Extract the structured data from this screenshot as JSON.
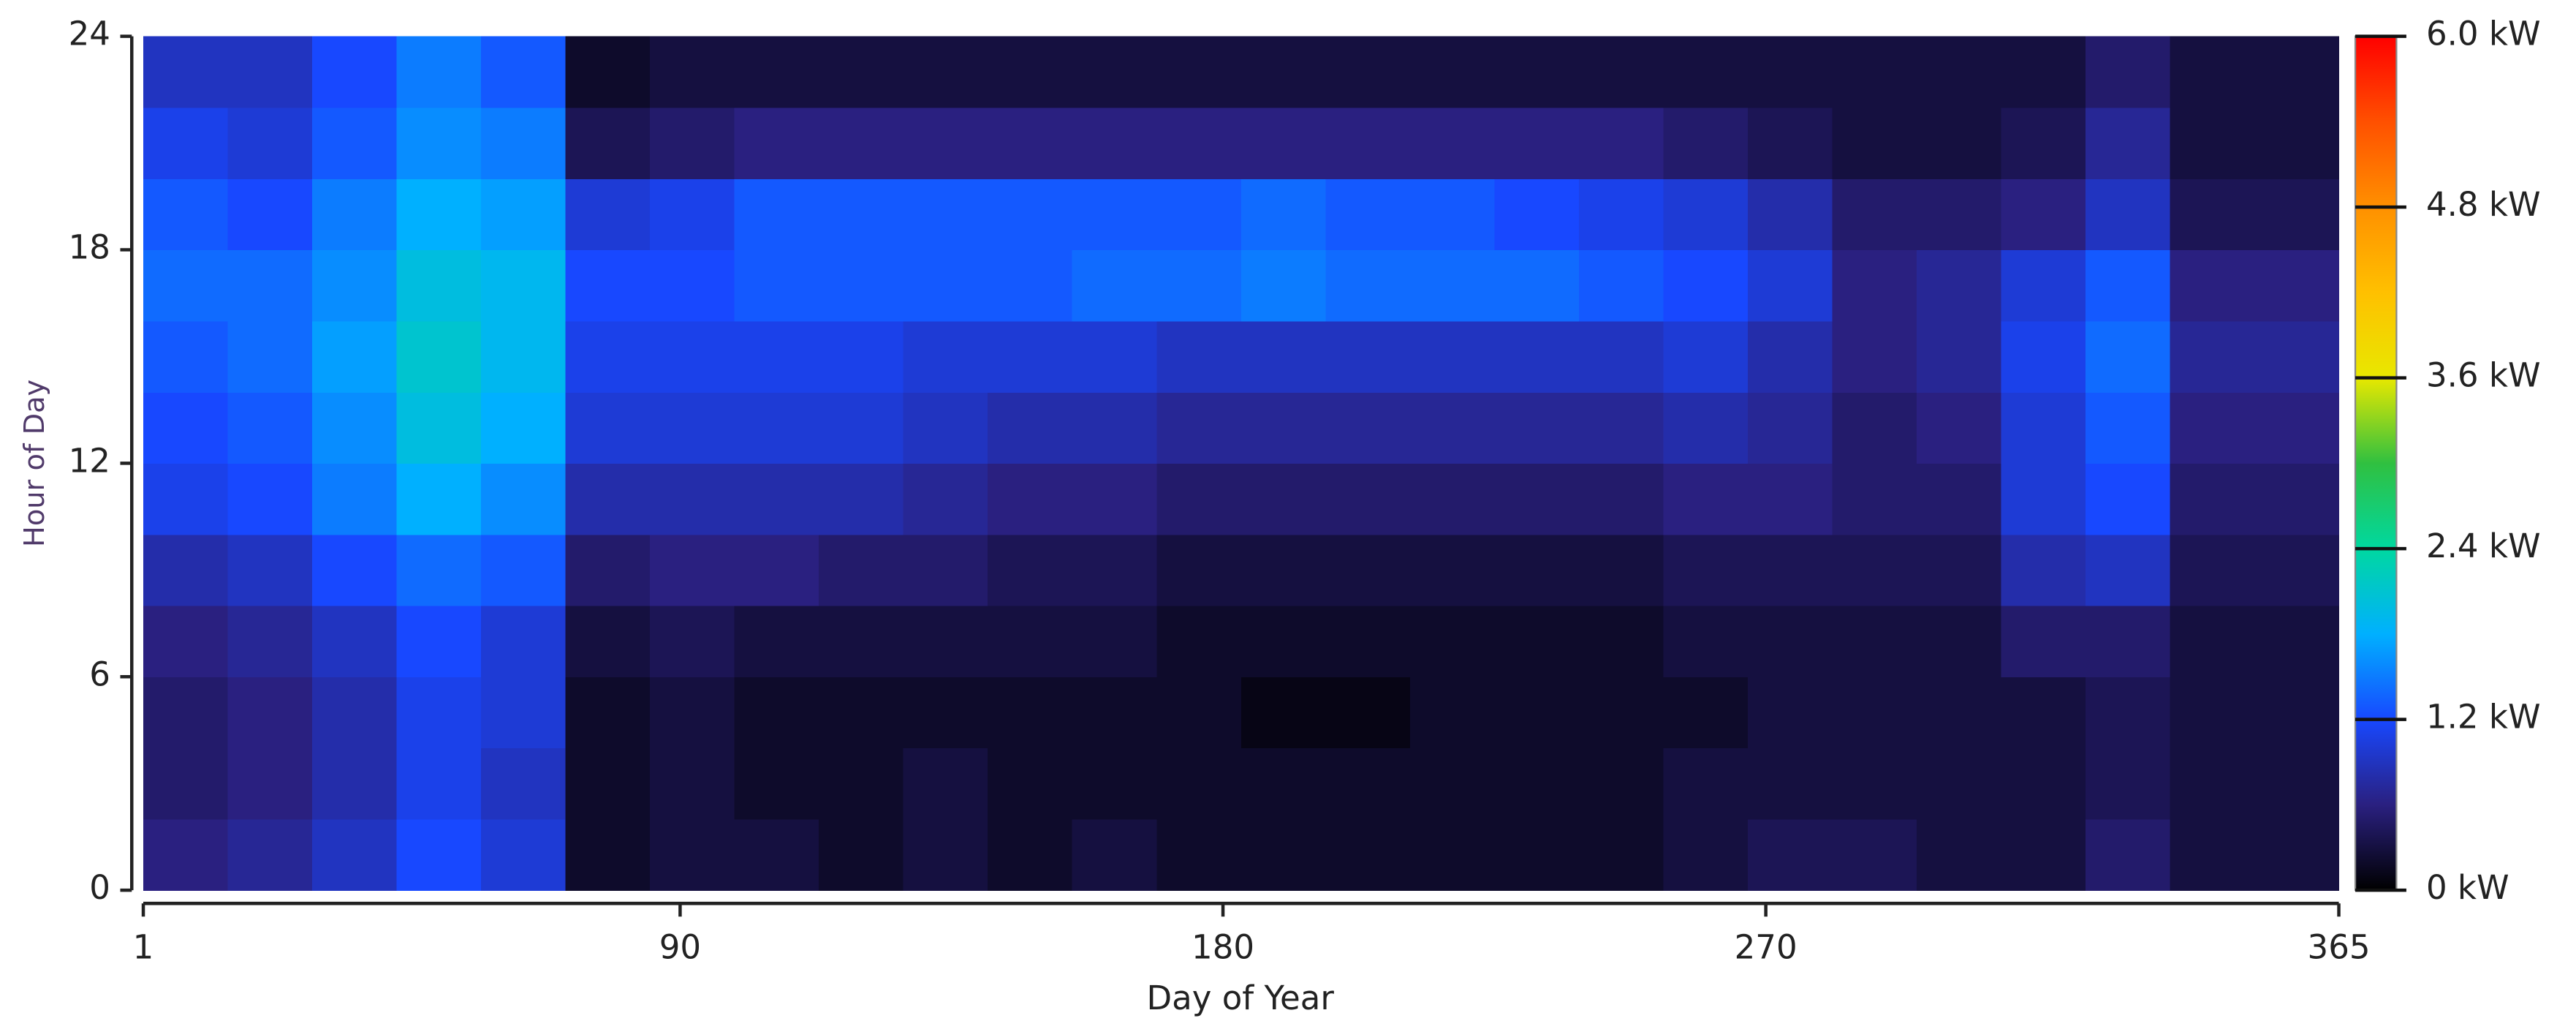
{
  "chart_data": {
    "type": "heatmap",
    "xlabel": "Day of Year",
    "ylabel": "Hour of Day",
    "xlim": [
      1,
      365
    ],
    "xticks": [
      1,
      90,
      180,
      270,
      365
    ],
    "ylim": [
      0,
      24
    ],
    "yticks": [
      0,
      6,
      12,
      18,
      24
    ],
    "x_bins": [
      1,
      15,
      29,
      43,
      57,
      71,
      85,
      99,
      113,
      127,
      141,
      155,
      169,
      183,
      197,
      211,
      225,
      239,
      253,
      267,
      281,
      295,
      309,
      323,
      337,
      351,
      365
    ],
    "y_bins": [
      0,
      2,
      4,
      6,
      8,
      10,
      12,
      14,
      16,
      18,
      20,
      22,
      24
    ],
    "z": [
      [
        0.6,
        0.7,
        0.9,
        1.2,
        1.0,
        0.2,
        0.3,
        0.3,
        0.2,
        0.3,
        0.2,
        0.3,
        0.2,
        0.2,
        0.2,
        0.2,
        0.2,
        0.2,
        0.3,
        0.4,
        0.4,
        0.3,
        0.3,
        0.5,
        0.3,
        0.3
      ],
      [
        0.5,
        0.6,
        0.8,
        1.1,
        0.9,
        0.2,
        0.3,
        0.2,
        0.2,
        0.3,
        0.2,
        0.2,
        0.2,
        0.2,
        0.2,
        0.2,
        0.2,
        0.2,
        0.3,
        0.3,
        0.3,
        0.3,
        0.3,
        0.4,
        0.3,
        0.3
      ],
      [
        0.5,
        0.6,
        0.8,
        1.1,
        1.0,
        0.2,
        0.3,
        0.2,
        0.2,
        0.2,
        0.2,
        0.2,
        0.2,
        0.1,
        0.1,
        0.2,
        0.2,
        0.2,
        0.2,
        0.3,
        0.3,
        0.3,
        0.3,
        0.4,
        0.3,
        0.3
      ],
      [
        0.6,
        0.7,
        0.9,
        1.2,
        1.0,
        0.3,
        0.4,
        0.3,
        0.3,
        0.3,
        0.3,
        0.3,
        0.2,
        0.2,
        0.2,
        0.2,
        0.2,
        0.2,
        0.3,
        0.3,
        0.3,
        0.3,
        0.5,
        0.5,
        0.3,
        0.3
      ],
      [
        0.8,
        0.9,
        1.2,
        1.4,
        1.3,
        0.5,
        0.6,
        0.6,
        0.5,
        0.5,
        0.4,
        0.4,
        0.3,
        0.3,
        0.3,
        0.3,
        0.3,
        0.3,
        0.4,
        0.4,
        0.4,
        0.4,
        0.8,
        0.9,
        0.4,
        0.4
      ],
      [
        1.1,
        1.2,
        1.5,
        1.8,
        1.6,
        0.8,
        0.8,
        0.8,
        0.8,
        0.7,
        0.6,
        0.6,
        0.5,
        0.5,
        0.5,
        0.5,
        0.5,
        0.5,
        0.6,
        0.6,
        0.5,
        0.5,
        1.0,
        1.2,
        0.5,
        0.5
      ],
      [
        1.2,
        1.3,
        1.6,
        2.0,
        1.8,
        1.0,
        1.0,
        1.0,
        1.0,
        0.9,
        0.8,
        0.8,
        0.7,
        0.7,
        0.7,
        0.7,
        0.7,
        0.7,
        0.8,
        0.7,
        0.5,
        0.6,
        1.0,
        1.3,
        0.6,
        0.6
      ],
      [
        1.3,
        1.4,
        1.7,
        2.1,
        1.9,
        1.1,
        1.1,
        1.1,
        1.1,
        1.0,
        1.0,
        1.0,
        0.9,
        0.9,
        0.9,
        0.9,
        0.9,
        0.9,
        1.0,
        0.8,
        0.6,
        0.7,
        1.1,
        1.4,
        0.7,
        0.7
      ],
      [
        1.4,
        1.4,
        1.6,
        2.0,
        1.9,
        1.2,
        1.2,
        1.3,
        1.3,
        1.3,
        1.3,
        1.4,
        1.4,
        1.5,
        1.4,
        1.4,
        1.4,
        1.3,
        1.2,
        1.0,
        0.6,
        0.7,
        1.0,
        1.3,
        0.6,
        0.6
      ],
      [
        1.3,
        1.2,
        1.5,
        1.8,
        1.7,
        1.0,
        1.1,
        1.3,
        1.3,
        1.3,
        1.3,
        1.3,
        1.3,
        1.4,
        1.3,
        1.3,
        1.2,
        1.1,
        1.0,
        0.8,
        0.5,
        0.5,
        0.6,
        0.9,
        0.4,
        0.4
      ],
      [
        1.1,
        1.0,
        1.3,
        1.6,
        1.5,
        0.4,
        0.5,
        0.6,
        0.6,
        0.6,
        0.6,
        0.6,
        0.6,
        0.6,
        0.6,
        0.6,
        0.6,
        0.6,
        0.5,
        0.4,
        0.3,
        0.3,
        0.4,
        0.7,
        0.3,
        0.3
      ],
      [
        0.9,
        0.9,
        1.2,
        1.5,
        1.3,
        0.2,
        0.3,
        0.3,
        0.3,
        0.3,
        0.3,
        0.3,
        0.3,
        0.3,
        0.3,
        0.3,
        0.3,
        0.3,
        0.3,
        0.3,
        0.3,
        0.3,
        0.3,
        0.5,
        0.3,
        0.3
      ]
    ],
    "zlim": [
      0,
      6
    ],
    "zticks": [
      {
        "value": 0,
        "label": "0 kW"
      },
      {
        "value": 1.2,
        "label": "1.2 kW"
      },
      {
        "value": 2.4,
        "label": "2.4 kW"
      },
      {
        "value": 3.6,
        "label": "3.6 kW"
      },
      {
        "value": 4.8,
        "label": "4.8 kW"
      },
      {
        "value": 6,
        "label": "6.0 kW"
      }
    ],
    "colormap": [
      "#000000",
      "#2a2080",
      "#1848ff",
      "#00b0ff",
      "#00d8a0",
      "#30c040",
      "#e8e800",
      "#ffc000",
      "#ff9000",
      "#ff5000",
      "#ff0000"
    ]
  }
}
